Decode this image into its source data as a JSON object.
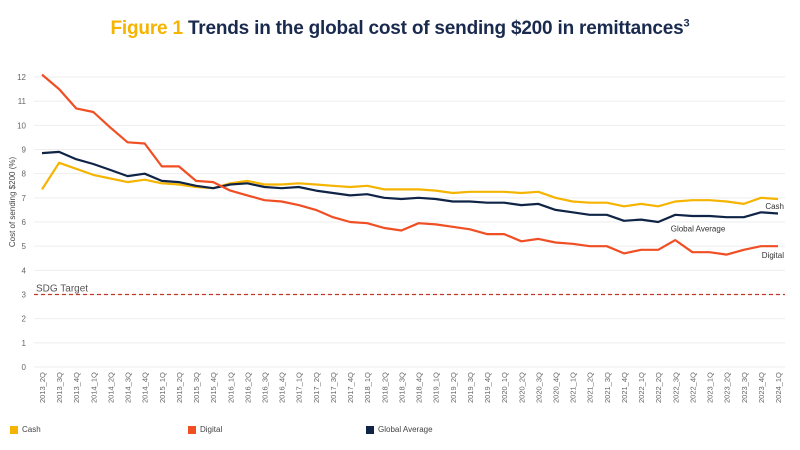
{
  "title": {
    "figure_label": "Figure 1",
    "text": "Trends in the global cost of sending $200 in remittances",
    "superscript": "3"
  },
  "colors": {
    "cash": "#f5b400",
    "digital": "#f04e23",
    "global_average": "#0f2446",
    "sdg_target": "#c0392b",
    "title_accent": "#f5b400",
    "title_main": "#1a2a4f"
  },
  "legend": [
    {
      "name": "Cash",
      "color": "#f5b400"
    },
    {
      "name": "Digital",
      "color": "#f04e23"
    },
    {
      "name": "Global Average",
      "color": "#0f2446"
    }
  ],
  "chart_data": {
    "type": "line",
    "title": "Figure 1 Trends in the global cost of sending $200 in remittances",
    "xlabel": "",
    "ylabel": "Cost of sending $200 (%)",
    "ylim": [
      0,
      12
    ],
    "yticks": [
      0,
      1,
      2,
      3,
      4,
      5,
      6,
      7,
      8,
      9,
      10,
      11,
      12
    ],
    "grid": true,
    "legend_position": "bottom",
    "x": [
      "2013_2Q",
      "2013_3Q",
      "2013_4Q",
      "2014_1Q",
      "2014_2Q",
      "2014_3Q",
      "2014_4Q",
      "2015_1Q",
      "2015_2Q",
      "2015_3Q",
      "2015_4Q",
      "2016_1Q",
      "2016_2Q",
      "2016_3Q",
      "2016_4Q",
      "2017_1Q",
      "2017_2Q",
      "2017_3Q",
      "2017_4Q",
      "2018_1Q",
      "2018_2Q",
      "2018_3Q",
      "2018_4Q",
      "2019_1Q",
      "2019_2Q",
      "2019_3Q",
      "2019_4Q",
      "2020_1Q",
      "2020_2Q",
      "2020_3Q",
      "2020_4Q",
      "2021_1Q",
      "2021_2Q",
      "2021_3Q",
      "2021_4Q",
      "2022_1Q",
      "2022_2Q",
      "2022_3Q",
      "2022_4Q",
      "2023_1Q",
      "2023_2Q",
      "2023_3Q",
      "2023_4Q",
      "2024_1Q"
    ],
    "series": [
      {
        "name": "Cash",
        "end_label": "Cash",
        "values": [
          7.35,
          8.45,
          8.2,
          7.95,
          7.8,
          7.65,
          7.75,
          7.6,
          7.55,
          7.45,
          7.4,
          7.6,
          7.7,
          7.55,
          7.55,
          7.6,
          7.55,
          7.5,
          7.45,
          7.5,
          7.35,
          7.35,
          7.35,
          7.3,
          7.2,
          7.25,
          7.25,
          7.25,
          7.2,
          7.25,
          7.0,
          6.85,
          6.8,
          6.8,
          6.65,
          6.75,
          6.65,
          6.85,
          6.9,
          6.9,
          6.85,
          6.75,
          7.0,
          6.95
        ]
      },
      {
        "name": "Digital",
        "end_label": "Digital",
        "values": [
          12.1,
          11.5,
          10.7,
          10.55,
          9.9,
          9.3,
          9.25,
          8.3,
          8.3,
          7.7,
          7.65,
          7.3,
          7.1,
          6.9,
          6.85,
          6.7,
          6.5,
          6.2,
          6.0,
          5.95,
          5.75,
          5.65,
          5.95,
          5.9,
          5.8,
          5.7,
          5.5,
          5.5,
          5.2,
          5.3,
          5.15,
          5.1,
          5.0,
          5.0,
          4.7,
          4.85,
          4.85,
          5.25,
          4.75,
          4.75,
          4.65,
          4.85,
          5.0,
          5.0
        ]
      },
      {
        "name": "Global Average",
        "end_label": "Global Average",
        "values": [
          8.85,
          8.9,
          8.6,
          8.4,
          8.15,
          7.9,
          8.0,
          7.7,
          7.65,
          7.5,
          7.4,
          7.55,
          7.6,
          7.45,
          7.4,
          7.45,
          7.3,
          7.2,
          7.1,
          7.15,
          7.0,
          6.95,
          7.0,
          6.95,
          6.85,
          6.85,
          6.8,
          6.8,
          6.7,
          6.75,
          6.5,
          6.4,
          6.3,
          6.3,
          6.05,
          6.1,
          6.0,
          6.3,
          6.25,
          6.25,
          6.2,
          6.2,
          6.4,
          6.35
        ]
      }
    ],
    "annotations": [
      {
        "type": "hline",
        "y": 3,
        "label": "SDG Target",
        "style": "dashed"
      }
    ]
  }
}
